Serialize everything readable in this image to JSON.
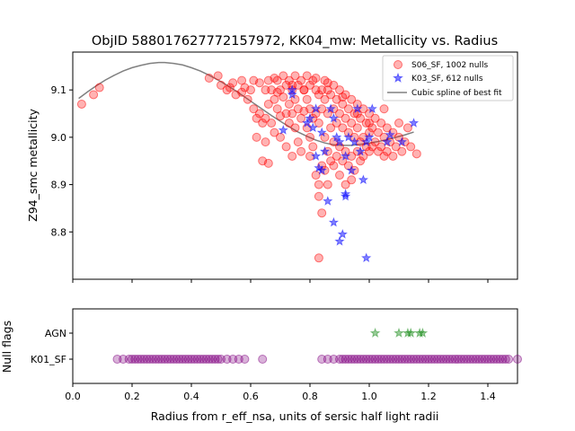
{
  "title": "ObjID 588017627772157972, KK04_mw: Metallicity vs. Radius",
  "chart_data": [
    {
      "id": "main",
      "type": "scatter",
      "ylabel": "Z94_smc metallicity",
      "xlim": [
        0.0,
        1.5
      ],
      "ylim": [
        8.7,
        9.18
      ],
      "xticks": [
        0.0,
        0.2,
        0.4,
        0.6,
        0.8,
        1.0,
        1.2,
        1.4
      ],
      "yticks": [
        8.8,
        8.9,
        9.0,
        9.1
      ],
      "ytick_labels": [
        "8.8",
        "8.9",
        "9.0",
        "9.1"
      ],
      "legend_position": "top-right",
      "series": [
        {
          "name": "S06_SF, 1002 nulls",
          "marker": "circle",
          "color": "#ff0000",
          "points": [
            [
              0.03,
              9.07
            ],
            [
              0.07,
              9.09
            ],
            [
              0.09,
              9.105
            ],
            [
              0.49,
              9.13
            ],
            [
              0.5,
              9.11
            ],
            [
              0.52,
              9.1
            ],
            [
              0.54,
              9.115
            ],
            [
              0.55,
              9.09
            ],
            [
              0.57,
              9.12
            ],
            [
              0.58,
              9.105
            ],
            [
              0.59,
              9.08
            ],
            [
              0.6,
              9.1
            ],
            [
              0.61,
              9.12
            ],
            [
              0.61,
              9.06
            ],
            [
              0.62,
              9.04
            ],
            [
              0.62,
              9.0
            ],
            [
              0.63,
              9.115
            ],
            [
              0.63,
              9.05
            ],
            [
              0.64,
              9.03
            ],
            [
              0.64,
              8.95
            ],
            [
              0.65,
              9.1
            ],
            [
              0.65,
              9.04
            ],
            [
              0.65,
              8.99
            ],
            [
              0.66,
              9.12
            ],
            [
              0.66,
              9.07
            ],
            [
              0.66,
              8.945
            ],
            [
              0.67,
              9.1
            ],
            [
              0.67,
              9.03
            ],
            [
              0.68,
              9.125
            ],
            [
              0.68,
              9.08
            ],
            [
              0.68,
              9.01
            ],
            [
              0.69,
              9.12
            ],
            [
              0.69,
              9.06
            ],
            [
              0.7,
              9.1
            ],
            [
              0.7,
              9.045
            ],
            [
              0.7,
              9.0
            ],
            [
              0.71,
              9.13
            ],
            [
              0.71,
              9.085
            ],
            [
              0.72,
              9.11
            ],
            [
              0.72,
              9.05
            ],
            [
              0.72,
              8.98
            ],
            [
              0.73,
              9.12
            ],
            [
              0.73,
              9.07
            ],
            [
              0.73,
              9.03
            ],
            [
              0.74,
              9.1
            ],
            [
              0.74,
              9.05
            ],
            [
              0.74,
              8.96
            ],
            [
              0.75,
              9.13
            ],
            [
              0.75,
              9.08
            ],
            [
              0.75,
              9.02
            ],
            [
              0.76,
              9.11
            ],
            [
              0.76,
              9.06
            ],
            [
              0.76,
              8.99
            ],
            [
              0.77,
              9.12
            ],
            [
              0.77,
              9.04
            ],
            [
              0.77,
              8.97
            ],
            [
              0.78,
              9.1
            ],
            [
              0.78,
              9.055
            ],
            [
              0.79,
              9.13
            ],
            [
              0.79,
              9.08
            ],
            [
              0.79,
              9.02
            ],
            [
              0.8,
              9.11
            ],
            [
              0.8,
              9.06
            ],
            [
              0.8,
              9.0
            ],
            [
              0.8,
              8.96
            ],
            [
              0.81,
              9.12
            ],
            [
              0.81,
              9.04
            ],
            [
              0.81,
              8.98
            ],
            [
              0.82,
              9.1
            ],
            [
              0.82,
              9.05
            ],
            [
              0.82,
              8.92
            ],
            [
              0.83,
              9.09
            ],
            [
              0.83,
              9.03
            ],
            [
              0.83,
              8.9
            ],
            [
              0.83,
              8.875
            ],
            [
              0.84,
              9.1
            ],
            [
              0.84,
              9.06
            ],
            [
              0.84,
              8.94
            ],
            [
              0.84,
              8.84
            ],
            [
              0.85,
              9.12
            ],
            [
              0.85,
              9.08
            ],
            [
              0.85,
              9.0
            ],
            [
              0.85,
              8.93
            ],
            [
              0.86,
              9.1
            ],
            [
              0.86,
              9.05
            ],
            [
              0.86,
              8.97
            ],
            [
              0.86,
              8.9
            ],
            [
              0.87,
              9.09
            ],
            [
              0.87,
              9.02
            ],
            [
              0.87,
              8.95
            ],
            [
              0.88,
              9.11
            ],
            [
              0.88,
              9.06
            ],
            [
              0.88,
              8.99
            ],
            [
              0.88,
              8.94
            ],
            [
              0.89,
              9.08
            ],
            [
              0.89,
              9.03
            ],
            [
              0.89,
              8.96
            ],
            [
              0.9,
              9.1
            ],
            [
              0.9,
              9.05
            ],
            [
              0.9,
              8.98
            ],
            [
              0.9,
              8.92
            ],
            [
              0.91,
              9.07
            ],
            [
              0.91,
              9.02
            ],
            [
              0.91,
              8.95
            ],
            [
              0.92,
              9.09
            ],
            [
              0.92,
              9.04
            ],
            [
              0.92,
              8.97
            ],
            [
              0.92,
              8.9
            ],
            [
              0.93,
              9.06
            ],
            [
              0.93,
              9.01
            ],
            [
              0.93,
              8.94
            ],
            [
              0.94,
              9.08
            ],
            [
              0.94,
              9.03
            ],
            [
              0.94,
              8.96
            ],
            [
              0.94,
              8.91
            ],
            [
              0.95,
              9.05
            ],
            [
              0.95,
              9.0
            ],
            [
              0.95,
              8.93
            ],
            [
              0.96,
              9.07
            ],
            [
              0.96,
              9.02
            ],
            [
              0.96,
              8.97
            ],
            [
              0.97,
              9.04
            ],
            [
              0.97,
              8.99
            ],
            [
              0.97,
              8.95
            ],
            [
              0.98,
              9.06
            ],
            [
              0.98,
              9.0
            ],
            [
              0.98,
              8.96
            ],
            [
              0.99,
              9.03
            ],
            [
              0.99,
              8.98
            ],
            [
              1.0,
              9.05
            ],
            [
              1.0,
              9.01
            ],
            [
              1.0,
              8.97
            ],
            [
              1.01,
              9.02
            ],
            [
              1.01,
              8.98
            ],
            [
              1.02,
              9.04
            ],
            [
              1.02,
              8.99
            ],
            [
              1.03,
              9.01
            ],
            [
              1.03,
              8.97
            ],
            [
              1.04,
              9.03
            ],
            [
              1.04,
              8.98
            ],
            [
              1.05,
              9.0
            ],
            [
              1.05,
              8.96
            ],
            [
              1.06,
              9.02
            ],
            [
              1.06,
              8.97
            ],
            [
              1.07,
              8.99
            ],
            [
              1.08,
              9.01
            ],
            [
              1.08,
              8.96
            ],
            [
              1.09,
              8.98
            ],
            [
              1.1,
              9.0
            ],
            [
              1.1,
              9.03
            ],
            [
              1.11,
              8.97
            ],
            [
              1.12,
              8.99
            ],
            [
              1.13,
              9.02
            ],
            [
              1.14,
              8.98
            ],
            [
              1.16,
              8.965
            ],
            [
              1.0,
              9.03
            ],
            [
              1.05,
              9.06
            ],
            [
              0.83,
              8.745
            ],
            [
              0.82,
              9.125
            ],
            [
              0.78,
              9.1
            ],
            [
              0.74,
              9.11
            ],
            [
              0.69,
              9.095
            ],
            [
              0.57,
              9.095
            ],
            [
              0.53,
              9.105
            ],
            [
              0.46,
              9.125
            ],
            [
              0.91,
              9.085
            ],
            [
              0.96,
              9.05
            ],
            [
              0.86,
              9.115
            ]
          ]
        },
        {
          "name": "K03_SF, 612 nulls",
          "marker": "star",
          "color": "#0000ff",
          "points": [
            [
              0.71,
              9.015
            ],
            [
              0.74,
              9.1
            ],
            [
              0.74,
              9.09
            ],
            [
              0.79,
              9.03
            ],
            [
              0.8,
              9.04
            ],
            [
              0.81,
              9.02
            ],
            [
              0.82,
              9.06
            ],
            [
              0.82,
              8.96
            ],
            [
              0.83,
              8.935
            ],
            [
              0.84,
              8.93
            ],
            [
              0.84,
              9.01
            ],
            [
              0.85,
              8.97
            ],
            [
              0.86,
              8.865
            ],
            [
              0.87,
              9.06
            ],
            [
              0.88,
              9.04
            ],
            [
              0.88,
              8.82
            ],
            [
              0.89,
              9.0
            ],
            [
              0.9,
              8.99
            ],
            [
              0.9,
              8.78
            ],
            [
              0.91,
              8.795
            ],
            [
              0.92,
              8.96
            ],
            [
              0.92,
              8.88
            ],
            [
              0.92,
              8.875
            ],
            [
              0.93,
              9.0
            ],
            [
              0.94,
              8.93
            ],
            [
              0.95,
              8.99
            ],
            [
              0.96,
              9.06
            ],
            [
              0.97,
              8.97
            ],
            [
              0.98,
              8.91
            ],
            [
              0.99,
              8.99
            ],
            [
              0.99,
              8.745
            ],
            [
              1.0,
              9.0
            ],
            [
              1.01,
              9.06
            ],
            [
              1.06,
              8.99
            ],
            [
              1.07,
              9.005
            ],
            [
              1.11,
              8.99
            ],
            [
              1.15,
              9.03
            ]
          ]
        }
      ],
      "fit": {
        "name": "Cubic spline of best fit",
        "color": "#808080",
        "x": [
          0.02,
          0.05,
          0.08,
          0.11,
          0.14,
          0.17,
          0.2,
          0.23,
          0.26,
          0.29,
          0.31,
          0.34,
          0.37,
          0.4,
          0.43,
          0.46,
          0.49,
          0.52,
          0.55,
          0.58,
          0.61,
          0.64,
          0.67,
          0.7,
          0.73,
          0.76,
          0.79,
          0.82,
          0.85,
          0.88,
          0.91,
          0.94,
          0.97,
          1.0,
          1.03,
          1.06,
          1.09,
          1.12,
          1.15
        ],
        "y": [
          9.082,
          9.096,
          9.109,
          9.121,
          9.131,
          9.14,
          9.147,
          9.152,
          9.156,
          9.158,
          9.158,
          9.156,
          9.153,
          9.147,
          9.14,
          9.131,
          9.121,
          9.11,
          9.098,
          9.085,
          9.072,
          9.059,
          9.046,
          9.034,
          9.022,
          9.011,
          9.002,
          8.994,
          8.988,
          8.984,
          8.983,
          8.983,
          8.985,
          8.988,
          8.991,
          8.995,
          9.0,
          9.005,
          9.011
        ]
      }
    },
    {
      "id": "null-flags",
      "type": "scatter",
      "ylabel": "Null flags",
      "xlabel": "Radius from r_eff_nsa, units of sersic half light radii",
      "xlim": [
        0.0,
        1.5
      ],
      "xticks": [
        0.0,
        0.2,
        0.4,
        0.6,
        0.8,
        1.0,
        1.2,
        1.4
      ],
      "xtick_labels": [
        "0.0",
        "0.2",
        "0.4",
        "0.6",
        "0.8",
        "1.0",
        "1.2",
        "1.4"
      ],
      "categories": [
        "K01_SF",
        "AGN"
      ],
      "series": [
        {
          "category": "K01_SF",
          "marker": "circle",
          "color": "#800080",
          "x": [
            0.15,
            0.17,
            0.19,
            0.2,
            0.21,
            0.22,
            0.23,
            0.24,
            0.25,
            0.26,
            0.27,
            0.28,
            0.29,
            0.3,
            0.31,
            0.32,
            0.33,
            0.34,
            0.35,
            0.36,
            0.37,
            0.38,
            0.39,
            0.4,
            0.41,
            0.42,
            0.43,
            0.44,
            0.45,
            0.46,
            0.47,
            0.48,
            0.49,
            0.5,
            0.52,
            0.54,
            0.56,
            0.58,
            0.64,
            0.84,
            0.86,
            0.88,
            0.9,
            0.91,
            0.92,
            0.93,
            0.94,
            0.95,
            0.96,
            0.97,
            0.98,
            0.99,
            1.0,
            1.01,
            1.02,
            1.03,
            1.04,
            1.05,
            1.06,
            1.07,
            1.08,
            1.09,
            1.1,
            1.11,
            1.12,
            1.13,
            1.14,
            1.15,
            1.16,
            1.17,
            1.18,
            1.19,
            1.2,
            1.21,
            1.22,
            1.23,
            1.24,
            1.25,
            1.26,
            1.27,
            1.28,
            1.29,
            1.3,
            1.31,
            1.32,
            1.33,
            1.34,
            1.35,
            1.36,
            1.37,
            1.38,
            1.39,
            1.4,
            1.41,
            1.42,
            1.43,
            1.44,
            1.45,
            1.46,
            1.47,
            1.5
          ]
        },
        {
          "category": "AGN",
          "marker": "star",
          "color": "#008000",
          "x": [
            1.02,
            1.1,
            1.13,
            1.14,
            1.17,
            1.18
          ]
        }
      ]
    }
  ]
}
